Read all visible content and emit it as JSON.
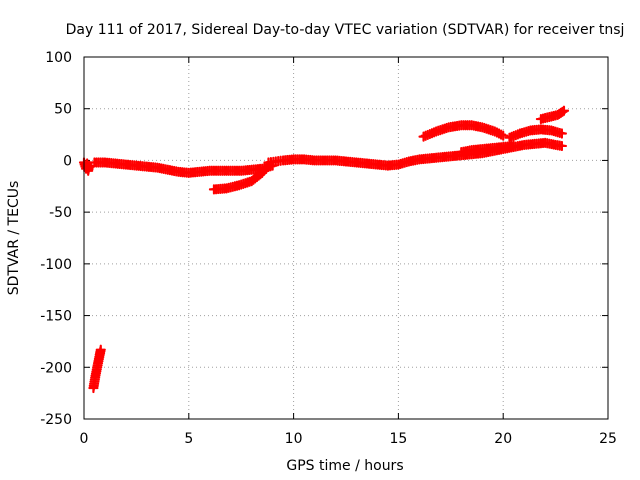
{
  "chart_data": {
    "type": "scatter",
    "title": "Day 111 of 2017, Sidereal Day-to-day VTEC variation (SDTVAR) for receiver tnsj",
    "xlabel": "GPS time / hours",
    "ylabel": "SDTVAR / TECUs",
    "xlim": [
      0,
      25
    ],
    "ylim": [
      -250,
      100
    ],
    "xticks": [
      0,
      5,
      10,
      15,
      20,
      25
    ],
    "yticks": [
      -250,
      -200,
      -150,
      -100,
      -50,
      0,
      50,
      100
    ],
    "grid": true,
    "marker": "plus",
    "color": "#ff0000",
    "series": [
      {
        "segments": [
          [
            [
              0.0,
              -2
            ],
            [
              0.1,
              -8
            ],
            [
              0.15,
              -3
            ],
            [
              0.2,
              -10
            ],
            [
              0.25,
              -5
            ]
          ],
          [
            [
              0.45,
              -220
            ],
            [
              0.55,
              -208
            ],
            [
              0.65,
              -198
            ],
            [
              0.75,
              -188
            ],
            [
              0.8,
              -183
            ]
          ],
          [
            [
              0.5,
              -2
            ],
            [
              1,
              -2
            ],
            [
              1.5,
              -3
            ],
            [
              2,
              -4
            ],
            [
              2.5,
              -5
            ],
            [
              3,
              -6
            ],
            [
              3.5,
              -7
            ],
            [
              4,
              -9
            ],
            [
              4.5,
              -11
            ],
            [
              5,
              -12
            ],
            [
              5.5,
              -11
            ],
            [
              6,
              -10
            ],
            [
              6.5,
              -10
            ],
            [
              7,
              -10
            ],
            [
              7.5,
              -10
            ],
            [
              8,
              -9
            ],
            [
              8.5,
              -8
            ],
            [
              9,
              -5
            ]
          ],
          [
            [
              6.2,
              -28
            ],
            [
              6.8,
              -27
            ],
            [
              7.4,
              -24
            ],
            [
              8.0,
              -20
            ],
            [
              8.5,
              -12
            ],
            [
              8.8,
              -5
            ]
          ],
          [
            [
              8.8,
              -2
            ],
            [
              9.5,
              0
            ],
            [
              10,
              1
            ],
            [
              10.5,
              1
            ],
            [
              11,
              0
            ],
            [
              11.5,
              0
            ],
            [
              12,
              0
            ],
            [
              12.5,
              -1
            ],
            [
              13,
              -2
            ],
            [
              13.5,
              -3
            ],
            [
              14,
              -4
            ],
            [
              14.5,
              -5
            ],
            [
              15,
              -4
            ],
            [
              15.5,
              -1
            ],
            [
              16,
              1
            ],
            [
              16.5,
              2
            ],
            [
              17,
              3
            ],
            [
              17.5,
              4
            ],
            [
              18,
              5
            ],
            [
              18.5,
              6
            ],
            [
              19,
              7
            ],
            [
              19.5,
              9
            ],
            [
              20,
              11
            ],
            [
              20.5,
              13
            ],
            [
              21,
              15
            ],
            [
              21.5,
              16
            ],
            [
              22,
              17
            ],
            [
              22.5,
              15
            ],
            [
              22.8,
              14
            ]
          ],
          [
            [
              16.2,
              23
            ],
            [
              16.8,
              28
            ],
            [
              17.4,
              32
            ],
            [
              18,
              34
            ],
            [
              18.5,
              34
            ],
            [
              19,
              32
            ],
            [
              19.6,
              28
            ],
            [
              20,
              24
            ]
          ],
          [
            [
              18,
              8
            ],
            [
              18.5,
              10
            ],
            [
              19,
              11
            ],
            [
              19.5,
              12
            ],
            [
              20,
              13
            ],
            [
              20.5,
              14
            ]
          ],
          [
            [
              20.3,
              22
            ],
            [
              20.8,
              26
            ],
            [
              21.3,
              29
            ],
            [
              21.8,
              30
            ],
            [
              22.3,
              29
            ],
            [
              22.8,
              26
            ]
          ],
          [
            [
              21.8,
              40
            ],
            [
              22.2,
              42
            ],
            [
              22.6,
              44
            ],
            [
              22.9,
              48
            ]
          ]
        ]
      }
    ]
  }
}
